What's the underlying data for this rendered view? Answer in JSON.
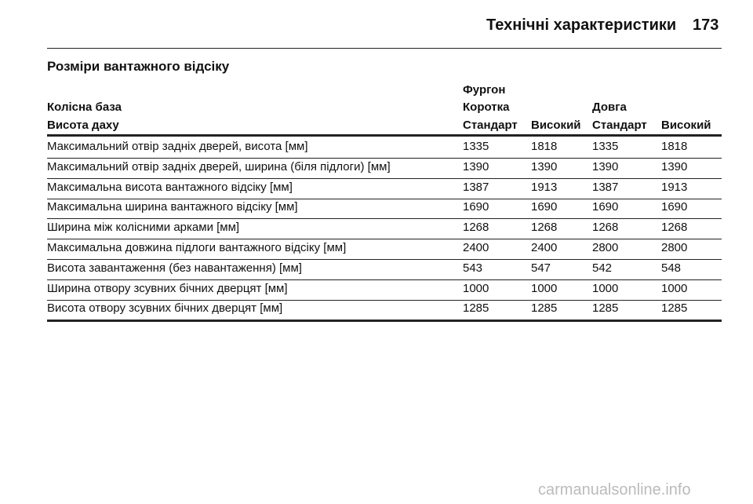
{
  "header": {
    "title": "Технічні характеристики",
    "page_number": "173"
  },
  "section_title": "Розміри вантажного відсіку",
  "table": {
    "group_header": "Фургон",
    "wheelbase_label": "Колісна база",
    "roof_label": "Висота даху",
    "wheelbase": [
      "Коротка",
      "Довга"
    ],
    "roof": [
      "Стандарт",
      "Високий",
      "Стандарт",
      "Високий"
    ],
    "rows": [
      [
        "Максимальний отвір задніх дверей, висота [мм]",
        1335,
        1818,
        1335,
        1818
      ],
      [
        "Максимальний отвір задніх дверей, ширина (біля підлоги) [мм]",
        1390,
        1390,
        1390,
        1390
      ],
      [
        "Максимальна висота вантажного відсіку [мм]",
        1387,
        1913,
        1387,
        1913
      ],
      [
        "Максимальна ширина вантажного відсіку [мм]",
        1690,
        1690,
        1690,
        1690
      ],
      [
        "Ширина між колісними арками [мм]",
        1268,
        1268,
        1268,
        1268
      ],
      [
        "Максимальна довжина підлоги вантажного відсіку [мм]",
        2400,
        2400,
        2800,
        2800
      ],
      [
        "Висота завантаження (без навантаження) [мм]",
        543,
        547,
        542,
        548
      ],
      [
        "Ширина отвору зсувних бічних дверцят [мм]",
        1000,
        1000,
        1000,
        1000
      ],
      [
        "Висота отвору зсувних бічних дверцят [мм]",
        1285,
        1285,
        1285,
        1285
      ]
    ]
  },
  "watermark": "carmanualsonline.info"
}
